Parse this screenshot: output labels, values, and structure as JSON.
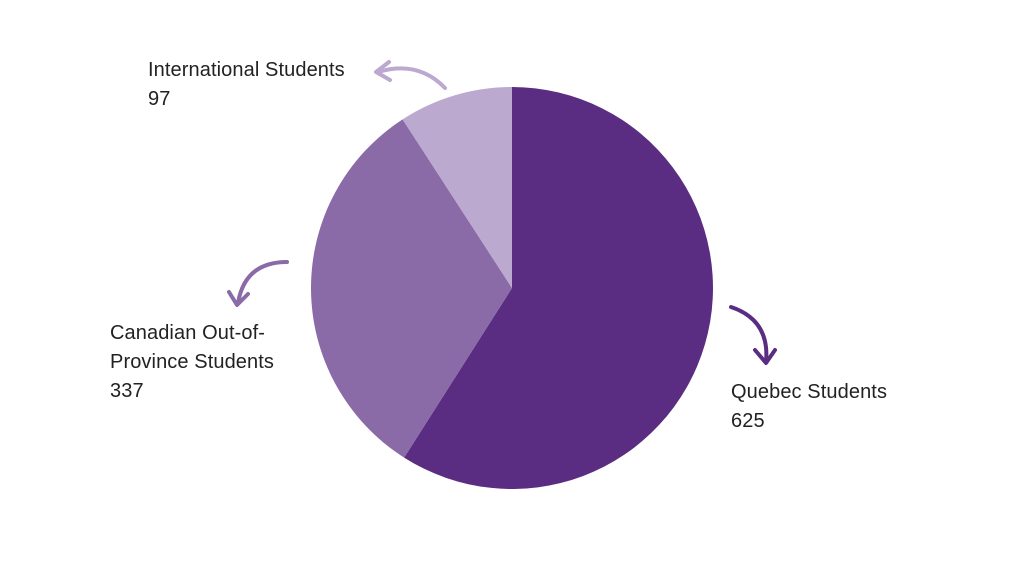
{
  "chart_data": {
    "type": "pie",
    "start_angle_deg": 0,
    "direction": "clockwise",
    "slices": [
      {
        "label": "Quebec Students",
        "value": 625,
        "color": "#5A2D82"
      },
      {
        "label": "Canadian Out-of-Province Students",
        "value": 337,
        "color": "#8A6BA8"
      },
      {
        "label": "International Students",
        "value": 97,
        "color": "#BBA9CF"
      }
    ]
  },
  "labels": {
    "international": {
      "line1": "International Students",
      "value": "97"
    },
    "canadian": {
      "line1": "Canadian Out-of-",
      "line2": "Province Students",
      "value": "337"
    },
    "quebec": {
      "line1": "Quebec Students",
      "value": "625"
    }
  },
  "arrows": [
    {
      "slice": "International Students",
      "color": "#BBA9CF"
    },
    {
      "slice": "Canadian Out-of-Province Students",
      "color": "#8A6BA8"
    },
    {
      "slice": "Quebec Students",
      "color": "#5A2D82"
    }
  ]
}
